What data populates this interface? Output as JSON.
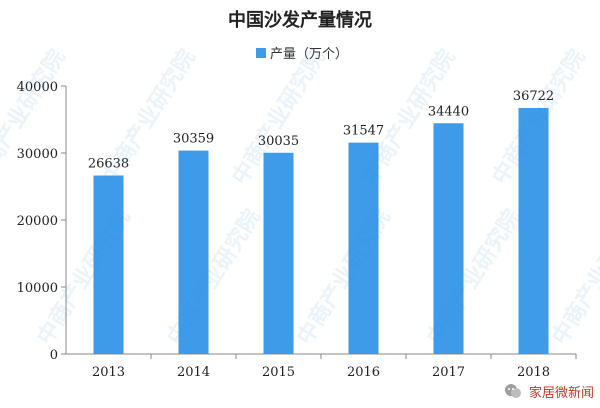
{
  "chart_data": {
    "type": "bar",
    "title": "中国沙发产量情况",
    "legend": "产量（万个）",
    "legend_position": "top-center",
    "categories": [
      "2013",
      "2014",
      "2015",
      "2016",
      "2017",
      "2018"
    ],
    "series": [
      {
        "name": "产量（万个）",
        "values": [
          26638,
          30359,
          30035,
          31547,
          34440,
          36722
        ]
      }
    ],
    "data_labels": [
      "26638",
      "30359",
      "30035",
      "31547",
      "34440",
      "36722"
    ],
    "y_ticks": [
      "0",
      "10000",
      "20000",
      "30000",
      "40000"
    ],
    "ylim": [
      0,
      40000
    ],
    "grid": false,
    "bar_color": "#3d9be9"
  },
  "watermark": {
    "text": "中商产业研究院"
  },
  "footer": {
    "text": "家居微新闻"
  },
  "icons": {
    "footer_icon": "wechat-icon"
  }
}
